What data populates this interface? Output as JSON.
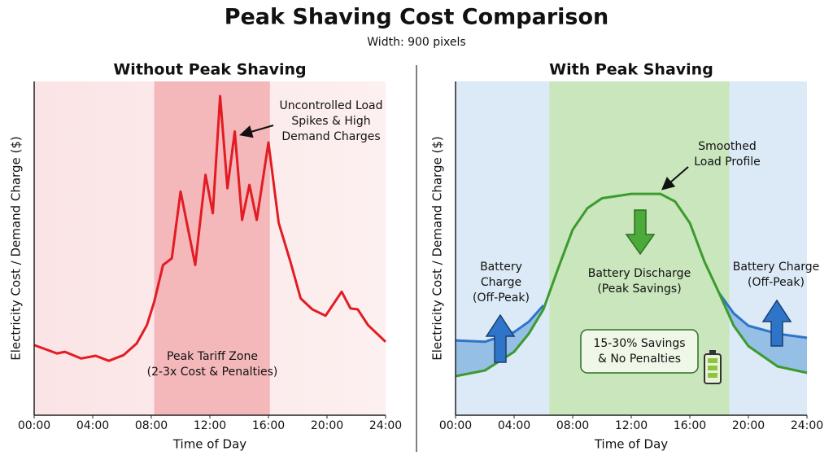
{
  "title": "Peak Shaving Cost Comparison",
  "subtitle": "Width: 900 pixels",
  "chart_data": [
    {
      "type": "line",
      "title": "Without Peak Shaving",
      "x_label": "Time of Day",
      "y_label": "Electricity Cost / Demand Charge ($)",
      "xlim": [
        0,
        24
      ],
      "ylim": [
        0,
        100
      ],
      "xticks": [
        {
          "value": 0,
          "label": "00:00"
        },
        {
          "value": 4,
          "label": "04:00"
        },
        {
          "value": 8,
          "label": "08:00"
        },
        {
          "value": 12,
          "label": "12:00"
        },
        {
          "value": 16,
          "label": "16:00"
        },
        {
          "value": 20,
          "label": "20:00"
        },
        {
          "value": 24,
          "label": "24:00"
        }
      ],
      "zone": [
        8.2,
        16.1
      ],
      "zone_color": "#f2a7ab",
      "x": [
        0,
        1.56,
        2.1,
        3.2,
        4.2,
        5.1,
        6.1,
        7,
        7.7,
        8.2,
        8.8,
        9.4,
        10,
        11,
        11.7,
        12.2,
        12.7,
        13.2,
        13.7,
        14.2,
        14.7,
        15.2,
        16,
        16.7,
        17.5,
        18.2,
        19,
        19.9,
        21,
        21.6,
        22.1,
        22.8,
        24
      ],
      "series": [
        {
          "color": "#e31b23",
          "values": [
            21,
            18.5,
            19,
            17,
            17.8,
            16.3,
            18,
            21.5,
            27,
            34,
            45,
            47,
            67,
            45,
            72,
            60.5,
            95.6,
            68,
            85,
            58.5,
            69,
            58.5,
            81.7,
            57.6,
            46,
            35,
            31.7,
            29.8,
            37,
            32,
            31.7,
            27,
            22
          ]
        }
      ],
      "annotations": [
        {
          "lines": [
            "Uncontrolled Load",
            "Spikes & High",
            "Demand Charges"
          ]
        },
        {
          "lines": [
            "Peak Tariff Zone",
            "(2-3x Cost & Penalties)"
          ]
        }
      ]
    },
    {
      "type": "line",
      "title": "With Peak Shaving",
      "x_label": "Time of Day",
      "y_label": "Electricity Cost / Demand Charge ($)",
      "xlim": [
        0,
        24
      ],
      "ylim": [
        0,
        100
      ],
      "xticks": [
        {
          "value": 0,
          "label": "00:00"
        },
        {
          "value": 4,
          "label": "04:00"
        },
        {
          "value": 8,
          "label": "08:00"
        },
        {
          "value": 12,
          "label": "12:00"
        },
        {
          "value": 16,
          "label": "16:00"
        },
        {
          "value": 20,
          "label": "20:00"
        },
        {
          "value": 24,
          "label": "24:00"
        }
      ],
      "zone": [
        6.4,
        18.7
      ],
      "zone_color": "#c9e6bc",
      "x": [
        0,
        2,
        4,
        5,
        6,
        7,
        8,
        9,
        10,
        12,
        14,
        15,
        16,
        17,
        18,
        19,
        20,
        22,
        24
      ],
      "series": [
        {
          "color": "#2e75c9",
          "values": [
            22.4,
            22,
            24.9,
            28,
            32.9,
            null,
            null,
            null,
            null,
            null,
            null,
            null,
            null,
            null,
            36.6,
            30.5,
            26.8,
            24.4,
            23.2
          ]
        },
        {
          "color": "#3c9a2e",
          "values": [
            11.7,
            13.4,
            19,
            24.4,
            31.7,
            43.9,
            55.6,
            62,
            65,
            66.3,
            66.3,
            64,
            57.6,
            46,
            36.6,
            26.8,
            20.7,
            14.6,
            12.7
          ]
        }
      ],
      "annotations": [
        {
          "lines": [
            "Smoothed",
            "Load Profile"
          ]
        },
        {
          "lines": [
            "Battery",
            "Charge",
            "(Off-Peak)"
          ]
        },
        {
          "lines": [
            "Battery Discharge",
            "(Peak Savings)"
          ]
        },
        {
          "lines": [
            "Battery Charge",
            "(Off-Peak)"
          ]
        },
        {
          "lines": [
            "15-30% Savings",
            "& No Penalties"
          ]
        }
      ]
    }
  ]
}
